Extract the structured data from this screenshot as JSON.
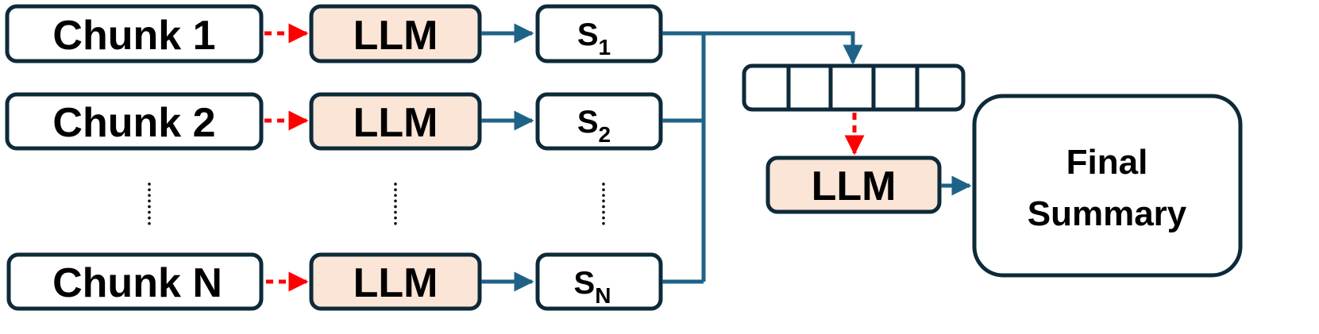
{
  "chunks": [
    {
      "label": "Chunk 1"
    },
    {
      "label": "Chunk 2"
    },
    {
      "label": "Chunk N"
    }
  ],
  "llm": {
    "label": "LLM",
    "fill": "#fbe5d6"
  },
  "summaries": [
    {
      "base": "S",
      "subscript": "1"
    },
    {
      "base": "S",
      "subscript": "2"
    },
    {
      "base": "S",
      "subscript": "N"
    }
  ],
  "final": {
    "line1": "Final",
    "line2": "Summary"
  },
  "colors": {
    "box_stroke": "#0d2a3a",
    "flow_arrow": "#1f6287",
    "dotted_arrow": "#ff0000",
    "ellipsis_dots": "#000000"
  }
}
